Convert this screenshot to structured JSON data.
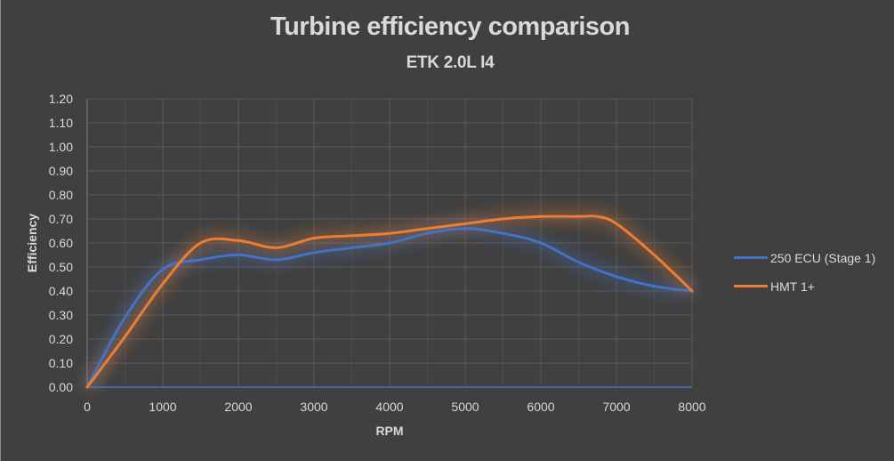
{
  "chart_data": {
    "type": "line",
    "title": "Turbine efficiency comparison",
    "subtitle": "ETK 2.0L I4",
    "xlabel": "RPM",
    "ylabel": "Efficiency",
    "xlim": [
      0,
      8000
    ],
    "ylim": [
      0,
      1.2
    ],
    "x_major_step": 1000,
    "x_minor_step": 500,
    "y_step": 0.1,
    "x_ticks": [
      "0",
      "1000",
      "2000",
      "3000",
      "4000",
      "5000",
      "6000",
      "7000",
      "8000"
    ],
    "y_ticks": [
      "0.00",
      "0.10",
      "0.20",
      "0.30",
      "0.40",
      "0.50",
      "0.60",
      "0.70",
      "0.80",
      "0.90",
      "1.00",
      "1.10",
      "1.20"
    ],
    "grid": true,
    "smooth": true,
    "legend_position": "right",
    "series": [
      {
        "name": "250 ECU (Stage 1)",
        "color": "#4472c4",
        "x": [
          0,
          500,
          1000,
          1500,
          2000,
          2500,
          3000,
          3500,
          4000,
          4500,
          5000,
          5500,
          6000,
          6500,
          7000,
          7500,
          8000
        ],
        "y": [
          0,
          0.29,
          0.49,
          0.53,
          0.55,
          0.53,
          0.56,
          0.58,
          0.6,
          0.64,
          0.66,
          0.64,
          0.6,
          0.52,
          0.46,
          0.42,
          0.4
        ]
      },
      {
        "name": "HMT 1+",
        "color": "#ed7d31",
        "x": [
          0,
          500,
          1000,
          1500,
          2000,
          2500,
          3000,
          3500,
          4000,
          4500,
          5000,
          5500,
          6000,
          6500,
          6750,
          7000,
          7500,
          8000
        ],
        "y": [
          0,
          0.21,
          0.43,
          0.6,
          0.61,
          0.58,
          0.62,
          0.63,
          0.64,
          0.66,
          0.68,
          0.7,
          0.71,
          0.71,
          0.71,
          0.68,
          0.55,
          0.4
        ]
      }
    ]
  }
}
